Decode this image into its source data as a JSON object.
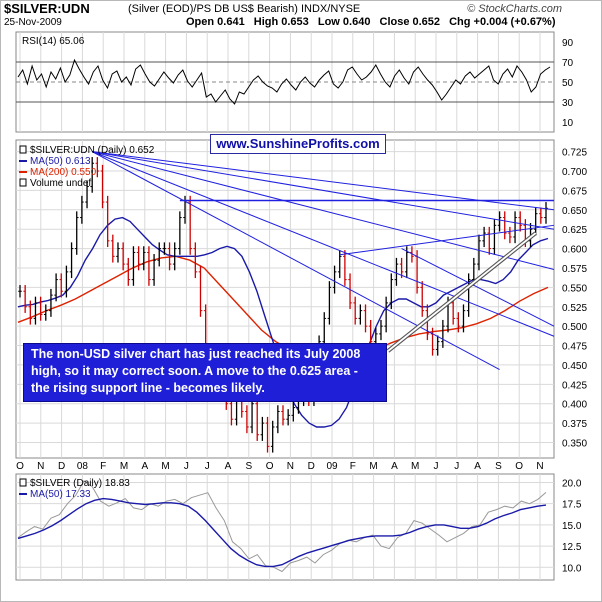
{
  "header": {
    "title": "$SILVER:UDN",
    "subtitle": "(Silver (EOD)/PS DB US$ Bearish)  INDX/NYSE",
    "brand": "© StockCharts.com",
    "date": "25-Nov-2009",
    "open": "Open 0.641",
    "high": "High 0.653",
    "low": "Low 0.640",
    "close": "Close 0.652",
    "chg": "Chg +0.004 (+0.67%)"
  },
  "watermark": "www.SunshineProfits.com",
  "annotation": "The non-USD silver chart has just reached its July 2008 high, so it may correct soon. A move to the 0.625 area - the rising support line - becomes likely.",
  "colors": {
    "price_up": "#000000",
    "price_down": "#cc0000",
    "ma50": "#1a1aa8",
    "ma200": "#dd2200",
    "trendline": "#2020e0",
    "rsi_line": "#000000",
    "panel_border": "#888888",
    "note_bg": "#1f1fd8",
    "gray_line": "#999999"
  },
  "chart_data": [
    {
      "type": "line",
      "panel": "rsi",
      "title": "RSI(14) 65.06",
      "ylim": [
        0,
        100
      ],
      "y_ticks": [
        "90",
        "70",
        "50",
        "30",
        "10"
      ],
      "reference_lines": [
        70,
        30
      ],
      "series": [
        {
          "name": "RSI(14)",
          "values": [
            55,
            62,
            48,
            66,
            52,
            58,
            45,
            60,
            53,
            64,
            50,
            57,
            72,
            63,
            55,
            48,
            60,
            66,
            52,
            44,
            58,
            61,
            50,
            55,
            47,
            63,
            67,
            58,
            50,
            46,
            53,
            60,
            54,
            49,
            57,
            62,
            51,
            45,
            52,
            59,
            35,
            38,
            30,
            36,
            42,
            33,
            28,
            40,
            38,
            45,
            52,
            56,
            50,
            46,
            44,
            40,
            48,
            53,
            47,
            42,
            50,
            55,
            49,
            45,
            52,
            57,
            61,
            48,
            44,
            50,
            62,
            65,
            58,
            52,
            55,
            60,
            67,
            58,
            50,
            45,
            56,
            62,
            54,
            48,
            60,
            65,
            58,
            52,
            47,
            40,
            32,
            38,
            45,
            52,
            48,
            56,
            60,
            54,
            58,
            62,
            66,
            52,
            48,
            58,
            63,
            55,
            66,
            60,
            52,
            40,
            45,
            58,
            62,
            65
          ]
        }
      ]
    },
    {
      "type": "line",
      "panel": "price",
      "legend": [
        "$SILVER:UDN (Daily) 0.652",
        "MA(50) 0.613",
        "MA(200) 0.550",
        "Volume undef"
      ],
      "ylim": [
        0.33,
        0.74
      ],
      "y_ticks": [
        "0.725",
        "0.700",
        "0.675",
        "0.650",
        "0.625",
        "0.600",
        "0.575",
        "0.550",
        "0.525",
        "0.500",
        "0.475",
        "0.450",
        "0.425",
        "0.400",
        "0.375",
        "0.350"
      ],
      "x_ticks": [
        "O",
        "N",
        "D",
        "08",
        "F",
        "M",
        "A",
        "M",
        "J",
        "J",
        "A",
        "S",
        "O",
        "N",
        "D",
        "09",
        "F",
        "M",
        "A",
        "M",
        "J",
        "J",
        "A",
        "S",
        "O",
        "N"
      ],
      "series": [
        {
          "name": "$SILVER:UDN",
          "values": [
            0.545,
            0.525,
            0.51,
            0.53,
            0.515,
            0.52,
            0.54,
            0.56,
            0.545,
            0.57,
            0.6,
            0.64,
            0.66,
            0.68,
            0.71,
            0.7,
            0.66,
            0.61,
            0.59,
            0.6,
            0.58,
            0.56,
            0.595,
            0.58,
            0.595,
            0.56,
            0.585,
            0.6,
            0.6,
            0.58,
            0.6,
            0.64,
            0.66,
            0.6,
            0.57,
            0.52,
            0.47,
            0.45,
            0.47,
            0.44,
            0.4,
            0.38,
            0.41,
            0.39,
            0.37,
            0.4,
            0.36,
            0.375,
            0.345,
            0.37,
            0.39,
            0.38,
            0.385,
            0.395,
            0.405,
            0.41,
            0.405,
            0.45,
            0.48,
            0.51,
            0.55,
            0.57,
            0.59,
            0.56,
            0.53,
            0.51,
            0.52,
            0.5,
            0.48,
            0.49,
            0.5,
            0.53,
            0.56,
            0.58,
            0.57,
            0.595,
            0.59,
            0.55,
            0.52,
            0.49,
            0.47,
            0.48,
            0.5,
            0.53,
            0.51,
            0.5,
            0.52,
            0.56,
            0.58,
            0.61,
            0.62,
            0.6,
            0.63,
            0.64,
            0.62,
            0.615,
            0.64,
            0.63,
            0.61,
            0.625,
            0.645,
            0.64,
            0.652
          ]
        },
        {
          "name": "MA(50)",
          "values": [
            0.525,
            0.527,
            0.528,
            0.531,
            0.533,
            0.536,
            0.54,
            0.55,
            0.565,
            0.585,
            0.6,
            0.618,
            0.63,
            0.638,
            0.64,
            0.635,
            0.625,
            0.615,
            0.605,
            0.598,
            0.592,
            0.59,
            0.59,
            0.59,
            0.59,
            0.592,
            0.595,
            0.6,
            0.603,
            0.6,
            0.59,
            0.57,
            0.545,
            0.515,
            0.485,
            0.455,
            0.425,
            0.4,
            0.385,
            0.375,
            0.37,
            0.37,
            0.372,
            0.38,
            0.395,
            0.42,
            0.445,
            0.475,
            0.5,
            0.52,
            0.53,
            0.535,
            0.535,
            0.53,
            0.525,
            0.525,
            0.53,
            0.54,
            0.545,
            0.55,
            0.555,
            0.56,
            0.56,
            0.558,
            0.555,
            0.56,
            0.57,
            0.585,
            0.595,
            0.605,
            0.61,
            0.613
          ]
        },
        {
          "name": "MA(200)",
          "values": [
            0.505,
            0.512,
            0.52,
            0.527,
            0.535,
            0.545,
            0.555,
            0.565,
            0.575,
            0.583,
            0.588,
            0.59,
            0.585,
            0.575,
            0.555,
            0.535,
            0.515,
            0.495,
            0.48,
            0.47,
            0.462,
            0.458,
            0.457,
            0.458,
            0.462,
            0.47,
            0.478,
            0.485,
            0.49,
            0.493,
            0.495,
            0.498,
            0.503,
            0.51,
            0.52,
            0.532,
            0.542,
            0.55
          ]
        }
      ]
    },
    {
      "type": "line",
      "panel": "silver",
      "legend": [
        "$SILVER (Daily) 18.83",
        "MA(50) 17.33"
      ],
      "ylim": [
        8.5,
        21
      ],
      "y_ticks": [
        "20.0",
        "17.5",
        "15.0",
        "12.5",
        "10.0"
      ],
      "x_ticks": [
        "O",
        "N",
        "D",
        "08",
        "F",
        "M",
        "A",
        "M",
        "J",
        "J",
        "A",
        "S",
        "O",
        "N",
        "D",
        "09",
        "F",
        "M",
        "A",
        "M",
        "J",
        "J",
        "A",
        "S",
        "O",
        "N"
      ],
      "series": [
        {
          "name": "$SILVER",
          "values": [
            13.5,
            14.2,
            14.8,
            14.5,
            15.8,
            16.2,
            17.5,
            18.5,
            20.2,
            19.5,
            17.8,
            17.2,
            17.6,
            18.1,
            17.0,
            16.8,
            17.5,
            17.2,
            17.8,
            18.0,
            17.5,
            18.2,
            18.5,
            18.8,
            17.0,
            15.5,
            13.0,
            12.2,
            11.0,
            11.5,
            10.2,
            10.0,
            9.5,
            10.5,
            10.8,
            11.2,
            10.5,
            11.5,
            12.0,
            12.8,
            13.2,
            13.0,
            13.5,
            13.8,
            12.5,
            12.2,
            13.5,
            14.0,
            15.5,
            15.2,
            14.5,
            13.8,
            13.0,
            13.5,
            14.0,
            14.8,
            15.0,
            16.5,
            16.8,
            17.2,
            17.0,
            17.8,
            17.5,
            18.0,
            18.83
          ]
        },
        {
          "name": "MA(50)",
          "values": [
            13.4,
            13.7,
            14.0,
            14.4,
            14.9,
            15.5,
            16.2,
            16.9,
            17.5,
            17.9,
            18.1,
            18.0,
            17.8,
            17.6,
            17.5,
            17.4,
            17.5,
            17.6,
            17.6,
            17.5,
            17.2,
            16.5,
            15.5,
            14.4,
            13.3,
            12.2,
            11.4,
            10.8,
            10.3,
            10.1,
            10.1,
            10.3,
            10.8,
            11.3,
            11.7,
            12.0,
            12.3,
            12.6,
            12.9,
            13.2,
            13.4,
            13.6,
            13.7,
            13.7,
            13.7,
            13.8,
            14.1,
            14.5,
            14.8,
            15.0,
            15.0,
            14.8,
            14.6,
            14.6,
            14.8,
            15.2,
            15.7,
            16.1,
            16.4,
            16.8,
            17.0,
            17.2,
            17.33
          ]
        }
      ]
    }
  ]
}
